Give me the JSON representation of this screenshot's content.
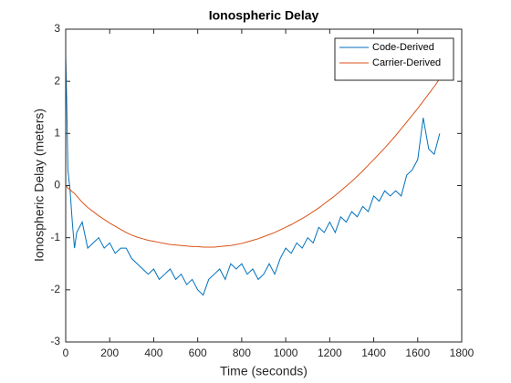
{
  "chart_data": {
    "type": "line",
    "title": "Ionospheric Delay",
    "x_label": "Time (seconds)",
    "y_label": "Ionospheric Delay (meters)",
    "x": [
      0,
      5,
      10,
      20,
      30,
      40,
      50,
      75,
      100,
      125,
      150,
      175,
      200,
      225,
      250,
      275,
      300,
      325,
      350,
      375,
      400,
      425,
      450,
      475,
      500,
      525,
      550,
      575,
      600,
      625,
      650,
      675,
      700,
      725,
      750,
      775,
      800,
      825,
      850,
      875,
      900,
      925,
      950,
      975,
      1000,
      1025,
      1050,
      1075,
      1100,
      1125,
      1150,
      1175,
      1200,
      1225,
      1250,
      1275,
      1300,
      1325,
      1350,
      1375,
      1400,
      1425,
      1450,
      1475,
      1500,
      1525,
      1550,
      1575,
      1600,
      1625,
      1650,
      1675,
      1700
    ],
    "series": [
      {
        "name": "Code-Derived",
        "color": "#0072bd",
        "values": [
          2.5,
          1.5,
          0.3,
          -0.1,
          -0.7,
          -1.2,
          -0.9,
          -0.7,
          -1.2,
          -1.1,
          -1.0,
          -1.2,
          -1.1,
          -1.3,
          -1.2,
          -1.2,
          -1.4,
          -1.5,
          -1.6,
          -1.7,
          -1.6,
          -1.8,
          -1.7,
          -1.6,
          -1.8,
          -1.7,
          -1.9,
          -1.8,
          -2.0,
          -2.1,
          -1.8,
          -1.7,
          -1.6,
          -1.8,
          -1.5,
          -1.6,
          -1.5,
          -1.7,
          -1.6,
          -1.8,
          -1.7,
          -1.5,
          -1.7,
          -1.4,
          -1.2,
          -1.3,
          -1.1,
          -1.2,
          -1.0,
          -1.1,
          -0.8,
          -0.9,
          -0.7,
          -0.9,
          -0.6,
          -0.7,
          -0.5,
          -0.6,
          -0.4,
          -0.5,
          -0.2,
          -0.3,
          -0.1,
          -0.2,
          -0.1,
          -0.2,
          0.2,
          0.3,
          0.5,
          1.3,
          0.7,
          0.6,
          1.0
        ]
      },
      {
        "name": "Carrier-Derived",
        "color": "#d95319",
        "values": [
          0,
          -0.02,
          -0.05,
          -0.08,
          -0.12,
          -0.15,
          -0.2,
          -0.32,
          -0.42,
          -0.5,
          -0.58,
          -0.65,
          -0.72,
          -0.78,
          -0.84,
          -0.9,
          -0.95,
          -0.99,
          -1.02,
          -1.05,
          -1.07,
          -1.09,
          -1.11,
          -1.13,
          -1.14,
          -1.15,
          -1.16,
          -1.17,
          -1.17,
          -1.18,
          -1.18,
          -1.18,
          -1.17,
          -1.16,
          -1.15,
          -1.13,
          -1.11,
          -1.08,
          -1.05,
          -1.02,
          -0.98,
          -0.94,
          -0.9,
          -0.85,
          -0.8,
          -0.75,
          -0.69,
          -0.63,
          -0.57,
          -0.5,
          -0.43,
          -0.35,
          -0.27,
          -0.19,
          -0.1,
          -0.01,
          0.08,
          0.18,
          0.28,
          0.39,
          0.5,
          0.61,
          0.72,
          0.84,
          0.96,
          1.09,
          1.22,
          1.35,
          1.48,
          1.62,
          1.76,
          1.9,
          2.05
        ]
      }
    ],
    "xlim": [
      0,
      1800
    ],
    "xticks": [
      0,
      200,
      400,
      600,
      800,
      1000,
      1200,
      1400,
      1600,
      1800
    ],
    "ylim": [
      -3,
      3
    ],
    "yticks": [
      -3,
      -2,
      -1,
      0,
      1,
      2,
      3
    ],
    "grid": false,
    "legend": "top-right"
  }
}
